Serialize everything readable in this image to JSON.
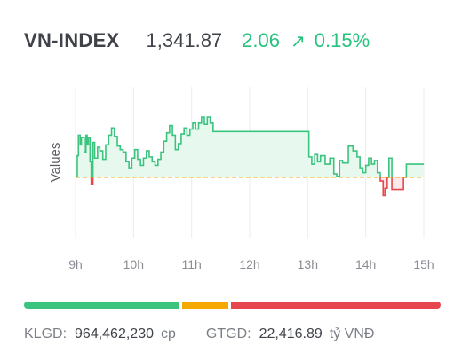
{
  "header": {
    "index_name": "VN-INDEX",
    "value": "1,341.87",
    "change": "2.06",
    "change_pct": "0.15%",
    "arrow_icon": "arrow-up-right-icon",
    "change_color": "#27c27b"
  },
  "chart_data": {
    "type": "line",
    "title": "",
    "xlabel": "",
    "ylabel": "Values",
    "x_ticks": [
      "9h",
      "10h",
      "11h",
      "12h",
      "13h",
      "14h",
      "15h"
    ],
    "reference_value": 1339.81,
    "ylim": [
      1334.8,
      1347.3
    ],
    "grid": "vertical",
    "series": [
      {
        "values": [
          [
            9.0,
            1339.9
          ],
          [
            9.03,
            1341.6
          ],
          [
            9.05,
            1343.3
          ],
          [
            9.08,
            1342.5
          ],
          [
            9.1,
            1343.1
          ],
          [
            9.15,
            1341.9
          ],
          [
            9.18,
            1343.3
          ],
          [
            9.2,
            1342.5
          ],
          [
            9.22,
            1343.1
          ],
          [
            9.25,
            1341.1
          ],
          [
            9.27,
            1339.2
          ],
          [
            9.3,
            1342.7
          ],
          [
            9.33,
            1341.4
          ],
          [
            9.38,
            1342.3
          ],
          [
            9.42,
            1342.0
          ],
          [
            9.47,
            1341.3
          ],
          [
            9.52,
            1342.5
          ],
          [
            9.57,
            1343.3
          ],
          [
            9.62,
            1343.9
          ],
          [
            9.67,
            1343.2
          ],
          [
            9.72,
            1342.4
          ],
          [
            9.77,
            1342.1
          ],
          [
            9.82,
            1341.9
          ],
          [
            9.87,
            1341.1
          ],
          [
            9.92,
            1340.6
          ],
          [
            9.97,
            1341.4
          ],
          [
            10.02,
            1342.1
          ],
          [
            10.07,
            1341.3
          ],
          [
            10.12,
            1340.8
          ],
          [
            10.17,
            1341.4
          ],
          [
            10.22,
            1342.0
          ],
          [
            10.27,
            1341.5
          ],
          [
            10.32,
            1341.1
          ],
          [
            10.37,
            1340.8
          ],
          [
            10.42,
            1341.3
          ],
          [
            10.47,
            1341.9
          ],
          [
            10.52,
            1342.8
          ],
          [
            10.57,
            1343.5
          ],
          [
            10.62,
            1344.1
          ],
          [
            10.67,
            1343.3
          ],
          [
            10.72,
            1342.1
          ],
          [
            10.77,
            1342.6
          ],
          [
            10.82,
            1343.4
          ],
          [
            10.87,
            1343.9
          ],
          [
            10.92,
            1343.3
          ],
          [
            10.97,
            1343.8
          ],
          [
            11.02,
            1344.3
          ],
          [
            11.07,
            1343.8
          ],
          [
            11.12,
            1344.3
          ],
          [
            11.17,
            1344.8
          ],
          [
            11.22,
            1344.2
          ],
          [
            11.27,
            1344.8
          ],
          [
            11.32,
            1344.3
          ],
          [
            11.37,
            1343.6
          ],
          [
            11.42,
            1343.6
          ],
          [
            12.0,
            1343.6
          ],
          [
            12.5,
            1343.6
          ],
          [
            12.9,
            1343.6
          ],
          [
            13.0,
            1343.6
          ],
          [
            13.02,
            1341.5
          ],
          [
            13.07,
            1340.9
          ],
          [
            13.12,
            1341.7
          ],
          [
            13.17,
            1341.1
          ],
          [
            13.22,
            1341.6
          ],
          [
            13.3,
            1340.9
          ],
          [
            13.38,
            1341.4
          ],
          [
            13.45,
            1340.1
          ],
          [
            13.5,
            1339.9
          ],
          [
            13.55,
            1341.2
          ],
          [
            13.6,
            1341.0
          ],
          [
            13.7,
            1342.4
          ],
          [
            13.78,
            1342.0
          ],
          [
            13.85,
            1341.5
          ],
          [
            13.9,
            1340.6
          ],
          [
            13.95,
            1340.2
          ],
          [
            14.0,
            1340.8
          ],
          [
            14.05,
            1341.4
          ],
          [
            14.1,
            1340.9
          ],
          [
            14.15,
            1341.2
          ],
          [
            14.2,
            1340.2
          ],
          [
            14.25,
            1339.5
          ],
          [
            14.3,
            1338.3
          ],
          [
            14.33,
            1338.9
          ],
          [
            14.37,
            1339.8
          ],
          [
            14.4,
            1341.4
          ],
          [
            14.45,
            1338.8
          ],
          [
            14.5,
            1338.8
          ],
          [
            14.55,
            1338.8
          ],
          [
            14.6,
            1338.8
          ],
          [
            14.65,
            1339.8
          ],
          [
            14.7,
            1340.9
          ],
          [
            14.8,
            1340.9
          ],
          [
            14.9,
            1340.9
          ],
          [
            15.0,
            1340.9
          ]
        ]
      }
    ]
  },
  "progress_bar": {
    "segments": [
      {
        "name": "advancing",
        "fraction": 0.377,
        "color": "#3ac47d"
      },
      {
        "name": "unchanged",
        "fraction": 0.115,
        "color": "#f5a800"
      },
      {
        "name": "declining",
        "fraction": 0.508,
        "color": "#e8464e"
      }
    ]
  },
  "footer": {
    "volume_label": "KLGD:",
    "volume_value": "964,462,230",
    "volume_unit": "cp",
    "turnover_label": "GTGD:",
    "turnover_value": "22,416.89",
    "turnover_unit": "tỷ VNĐ"
  }
}
